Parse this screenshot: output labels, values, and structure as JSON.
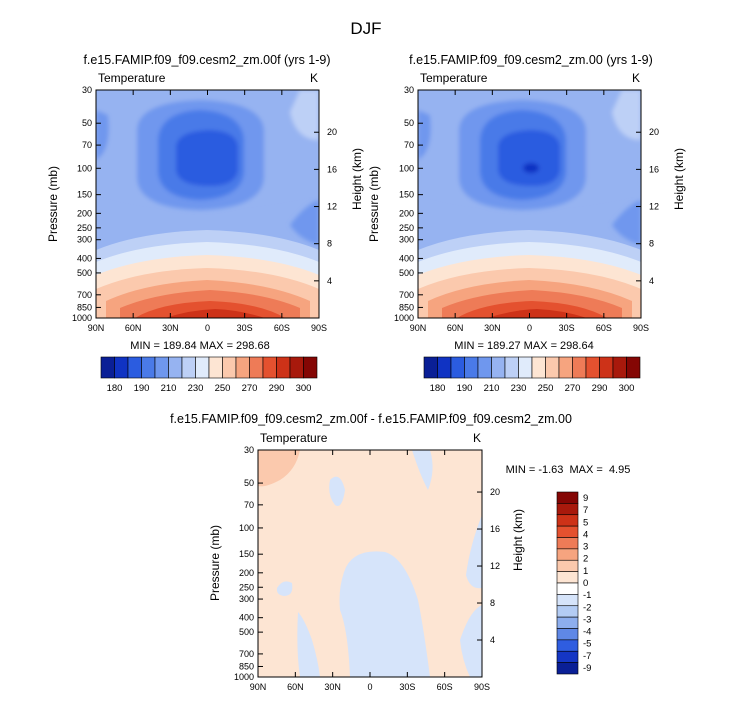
{
  "figure_title": "DJF",
  "panels": [
    {
      "title": "f.e15.FAMIP.f09_f09.cesm2_zm.00f (yrs 1-9)",
      "left_label": "Temperature",
      "right_label": "K",
      "min_max": "MIN = 189.84  MAX = 298.68"
    },
    {
      "title": "f.e15.FAMIP.f09_f09.cesm2_zm.00 (yrs 1-9)",
      "left_label": "Temperature",
      "right_label": "K",
      "min_max": "MIN = 189.27  MAX = 298.64"
    },
    {
      "title": "f.e15.FAMIP.f09_f09.cesm2_zm.00f - f.e15.FAMIP.f09_f09.cesm2_zm.00",
      "left_label": "Temperature",
      "right_label": "K",
      "min_max": "MIN = -1.63  MAX =  4.95"
    }
  ],
  "chart_data": [
    {
      "type": "heatmap",
      "title": "f.e15.FAMIP.f09_f09.cesm2_zm.00f (yrs 1-9)",
      "xlabel": "",
      "ylabel": "Pressure (mb)",
      "y2label": "Height (km)",
      "x_ticks": [
        "90N",
        "60N",
        "30N",
        "0",
        "30S",
        "60S",
        "90S"
      ],
      "y_ticks": [
        "30",
        "50",
        "70",
        "100",
        "150",
        "200",
        "250",
        "300",
        "400",
        "500",
        "700",
        "850",
        "1000"
      ],
      "y2_ticks": [
        "20",
        "16",
        "12",
        "8",
        "4"
      ],
      "colorbar_labels": [
        "180",
        "190",
        "210",
        "230",
        "250",
        "270",
        "290",
        "300"
      ],
      "colors": [
        "#0a1f96",
        "#1033c3",
        "#2b5ce0",
        "#4a7ae8",
        "#6f97ee",
        "#96b3f1",
        "#bdd0f6",
        "#e0ebfb",
        "#fde5d3",
        "#fbc9ad",
        "#f6a47f",
        "#ee7b57",
        "#e4512f",
        "#cd3218",
        "#a8190c",
        "#840604"
      ],
      "min": 189.84,
      "max": 298.68
    },
    {
      "type": "heatmap",
      "title": "f.e15.FAMIP.f09_f09.cesm2_zm.00 (yrs 1-9)",
      "xlabel": "",
      "ylabel": "Pressure (mb)",
      "y2label": "Height (km)",
      "x_ticks": [
        "90N",
        "60N",
        "30N",
        "0",
        "30S",
        "60S",
        "90S"
      ],
      "y_ticks": [
        "30",
        "50",
        "70",
        "100",
        "150",
        "200",
        "250",
        "300",
        "400",
        "500",
        "700",
        "850",
        "1000"
      ],
      "y2_ticks": [
        "20",
        "16",
        "12",
        "8",
        "4"
      ],
      "colorbar_labels": [
        "180",
        "190",
        "210",
        "230",
        "250",
        "270",
        "290",
        "300"
      ],
      "colors": [
        "#0a1f96",
        "#1033c3",
        "#2b5ce0",
        "#4a7ae8",
        "#6f97ee",
        "#96b3f1",
        "#bdd0f6",
        "#e0ebfb",
        "#fde5d3",
        "#fbc9ad",
        "#f6a47f",
        "#ee7b57",
        "#e4512f",
        "#cd3218",
        "#a8190c",
        "#840604"
      ],
      "min": 189.27,
      "max": 298.64
    },
    {
      "type": "heatmap",
      "title": "f.e15.FAMIP.f09_f09.cesm2_zm.00f - f.e15.FAMIP.f09_f09.cesm2_zm.00",
      "xlabel": "",
      "ylabel": "Pressure (mb)",
      "y2label": "Height (km)",
      "x_ticks": [
        "90N",
        "60N",
        "30N",
        "0",
        "30S",
        "60S",
        "90S"
      ],
      "y_ticks": [
        "30",
        "50",
        "70",
        "100",
        "150",
        "200",
        "250",
        "300",
        "400",
        "500",
        "700",
        "850",
        "1000"
      ],
      "y2_ticks": [
        "20",
        "16",
        "12",
        "8",
        "4"
      ],
      "colorbar_labels": [
        "9",
        "7",
        "5",
        "4",
        "3",
        "2",
        "1",
        "0",
        "-1",
        "-2",
        "-3",
        "-4",
        "-5",
        "-7",
        "-9"
      ],
      "colors": [
        "#840604",
        "#a8190c",
        "#cd3218",
        "#e4512f",
        "#ee7b57",
        "#f6a47f",
        "#fbc9ad",
        "#fde5d3",
        "#ffffff",
        "#d6e4fa",
        "#b3ccf4",
        "#8daeee",
        "#5f88e6",
        "#2f5de0",
        "#1536c4",
        "#0a1f96"
      ],
      "min": -1.63,
      "max": 4.95
    }
  ]
}
